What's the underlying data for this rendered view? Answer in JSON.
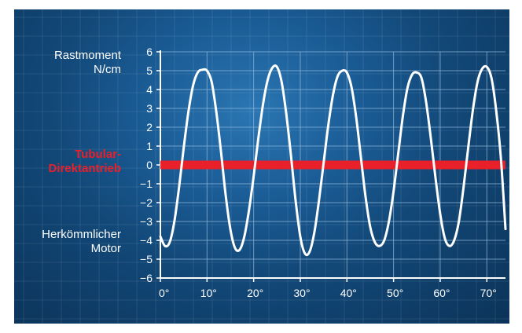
{
  "chart_data": {
    "type": "line",
    "title": "",
    "ylabel_line1": "Rastmoment",
    "ylabel_line2": "N/cm",
    "xlim": [
      0,
      74
    ],
    "ylim": [
      -6,
      6
    ],
    "x_ticks": [
      0,
      10,
      20,
      30,
      40,
      50,
      60,
      70
    ],
    "x_tick_labels": [
      "0°",
      "10°",
      "20°",
      "30°",
      "40°",
      "50°",
      "60°",
      "70°"
    ],
    "y_ticks": [
      6,
      5,
      4,
      3,
      2,
      1,
      0,
      -1,
      -2,
      -3,
      -4,
      -5,
      -6
    ],
    "y_tick_labels": [
      "6",
      "5",
      "4",
      "3",
      "2",
      "1",
      "0",
      "−1",
      "−2",
      "−3",
      "−4",
      "−5",
      "−6"
    ],
    "grid": true,
    "colors": {
      "curve": "#ffffff",
      "tubular": "#e8202a",
      "gridline": "#8fb4d6",
      "background": "#1b5d97"
    },
    "series": [
      {
        "name": "Herkömmlicher Motor",
        "x": [
          0,
          1,
          2,
          3,
          4,
          5,
          6,
          7,
          8,
          9,
          10,
          11,
          12,
          13,
          14,
          15,
          16,
          17,
          18,
          19,
          20,
          21,
          22,
          23,
          24,
          25,
          26,
          27,
          28,
          29,
          30,
          31,
          32,
          33,
          34,
          35,
          36,
          37,
          38,
          39,
          40,
          41,
          42,
          43,
          44,
          45,
          46,
          47,
          48,
          49,
          50,
          51,
          52,
          53,
          54,
          55,
          56,
          57,
          58,
          59,
          60,
          61,
          62,
          63,
          64,
          65,
          66,
          67,
          68,
          69,
          70,
          71,
          72,
          73,
          74
        ],
        "y": [
          -3.8,
          -4.3,
          -4.1,
          -3.0,
          -1.2,
          0.9,
          2.8,
          4.2,
          4.9,
          5.05,
          5.0,
          4.4,
          2.8,
          0.7,
          -1.6,
          -3.4,
          -4.4,
          -4.5,
          -3.8,
          -2.4,
          -0.6,
          1.4,
          3.2,
          4.5,
          5.15,
          5.2,
          4.4,
          2.7,
          0.5,
          -1.9,
          -3.8,
          -4.7,
          -4.6,
          -3.6,
          -1.9,
          0.1,
          2.1,
          3.7,
          4.7,
          5.0,
          4.9,
          4.1,
          2.5,
          0.4,
          -1.7,
          -3.3,
          -4.1,
          -4.3,
          -4.0,
          -3.0,
          -1.4,
          0.6,
          2.6,
          4.1,
          4.8,
          4.9,
          4.6,
          3.3,
          1.4,
          -0.7,
          -2.6,
          -3.9,
          -4.3,
          -4.0,
          -3.0,
          -1.2,
          0.9,
          2.9,
          4.4,
          5.1,
          5.2,
          4.6,
          2.9,
          0.4,
          -3.4
        ]
      },
      {
        "name": "Tubular-Direktantrieb",
        "x": [
          0,
          74
        ],
        "y": [
          0,
          0
        ]
      }
    ]
  },
  "labels": {
    "y_title_1": "Rastmoment",
    "y_title_2": "N/cm",
    "tubular_1": "Tubular-",
    "tubular_2": "Direktantrieb",
    "motor_1": "Herkömmlicher",
    "motor_2": "Motor"
  }
}
